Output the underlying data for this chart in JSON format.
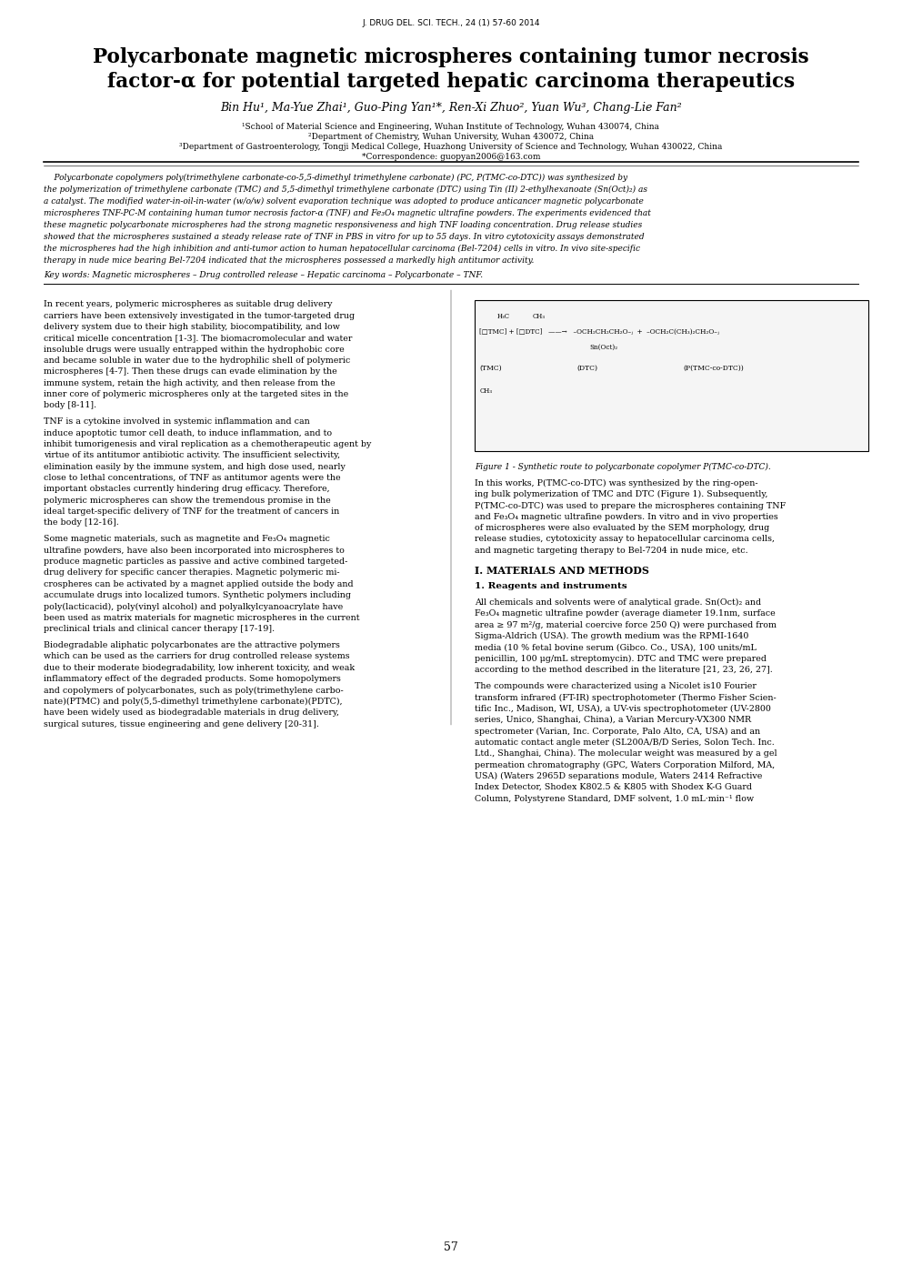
{
  "journal_header": "J. DRUG DEL. SCI. TECH., 24 (1) 57-60 2014",
  "title_line1": "Polycarbonate magnetic microspheres containing tumor necrosis",
  "title_line2": "factor-α for potential targeted hepatic carcinoma therapeutics",
  "authors": "Bin Hu¹, Ma-Yue Zhai¹, Guo-Ping Yan¹*, Ren-Xi Zhuo², Yuan Wu³, Chang-Lie Fan²",
  "affil1": "¹School of Material Science and Engineering, Wuhan Institute of Technology, Wuhan 430074, China",
  "affil2": "²Department of Chemistry, Wuhan University, Wuhan 430072, China",
  "affil3": "³Department of Gastroenterology, Tongji Medical College, Huazhong University of Science and Technology, Wuhan 430022, China",
  "correspondence": "*Correspondence: guopyan2006@163.com",
  "figure_caption": "Figure 1 - Synthetic route to polycarbonate copolymer P(TMC-co-DTC).",
  "section_header1": "I. MATERIALS AND METHODS",
  "section_header2": "1. Reagents and instruments",
  "page_number": "57",
  "bg_color": "#ffffff",
  "text_color": "#000000",
  "abstract_lines": [
    "    Polycarbonate copolymers poly(trimethylene carbonate-co-5,5-dimethyl trimethylene carbonate) (PC, P(TMC-co-DTC)) was synthesized by",
    "the polymerization of trimethylene carbonate (TMC) and 5,5-dimethyl trimethylene carbonate (DTC) using Tin (II) 2-ethylhexanoate (Sn(Oct)₂) as",
    "a catalyst. The modified water-in-oil-in-water (w/o/w) solvent evaporation technique was adopted to produce anticancer magnetic polycarbonate",
    "microspheres TNF-PC-M containing human tumor necrosis factor-α (TNF) and Fe₃O₄ magnetic ultrafine powders. The experiments evidenced that",
    "these magnetic polycarbonate microspheres had the strong magnetic responsiveness and high TNF loading concentration. Drug release studies",
    "showed that the microspheres sustained a steady release rate of TNF in PBS in vitro for up to 55 days. In vitro cytotoxicity assays demonstrated",
    "the microspheres had the high inhibition and anti-tumor action to human hepatocellular carcinoma (Bel-7204) cells in vitro. In vivo site-specific",
    "therapy in nude mice bearing Bel-7204 indicated that the microspheres possessed a markedly high antitumor activity."
  ],
  "keywords": "Key words: Magnetic microspheres – Drug controlled release – Hepatic carcinoma – Polycarbonate – TNF.",
  "left_para1": [
    "In recent years, polymeric microspheres as suitable drug delivery",
    "carriers have been extensively investigated in the tumor-targeted drug",
    "delivery system due to their high stability, biocompatibility, and low",
    "critical micelle concentration [1-3]. The biomacromolecular and water",
    "insoluble drugs were usually entrapped within the hydrophobic core",
    "and became soluble in water due to the hydrophilic shell of polymeric",
    "microspheres [4-7]. Then these drugs can evade elimination by the",
    "immune system, retain the high activity, and then release from the",
    "inner core of polymeric microspheres only at the targeted sites in the",
    "body [8-11]."
  ],
  "left_para2": [
    "TNF is a cytokine involved in systemic inflammation and can",
    "induce apoptotic tumor cell death, to induce inflammation, and to",
    "inhibit tumorigenesis and viral replication as a chemotherapeutic agent by",
    "virtue of its antitumor antibiotic activity. The insufficient selectivity,",
    "elimination easily by the immune system, and high dose used, nearly",
    "close to lethal concentrations, of TNF as antitumor agents were the",
    "important obstacles currently hindering drug efficacy. Therefore,",
    "polymeric microspheres can show the tremendous promise in the",
    "ideal target-specific delivery of TNF for the treatment of cancers in",
    "the body [12-16]."
  ],
  "left_para3": [
    "Some magnetic materials, such as magnetite and Fe₃O₄ magnetic",
    "ultrafine powders, have also been incorporated into microspheres to",
    "produce magnetic particles as passive and active combined targeted-",
    "drug delivery for specific cancer therapies. Magnetic polymeric mi-",
    "crospheres can be activated by a magnet applied outside the body and",
    "accumulate drugs into localized tumors. Synthetic polymers including",
    "poly(lacticacid), poly(vinyl alcohol) and polyalkylcyanoacrylate have",
    "been used as matrix materials for magnetic microspheres in the current",
    "preclinical trials and clinical cancer therapy [17-19]."
  ],
  "left_para4": [
    "Biodegradable aliphatic polycarbonates are the attractive polymers",
    "which can be used as the carriers for drug controlled release systems",
    "due to their moderate biodegradability, low inherent toxicity, and weak",
    "inflammatory effect of the degraded products. Some homopolymers",
    "and copolymers of polycarbonates, such as poly(trimethylene carbo-",
    "nate)(PTMC) and poly(5,5-dimethyl trimethylene carbonate)(PDTC),",
    "have been widely used as biodegradable materials in drug delivery,",
    "surgical sutures, tissue engineering and gene delivery [20-31]."
  ],
  "right_para1": [
    "In this works, P(TMC-co-DTC) was synthesized by the ring-open-",
    "ing bulk polymerization of TMC and DTC (Figure 1). Subsequently,",
    "P(TMC-co-DTC) was used to prepare the microspheres containing TNF",
    "and Fe₃O₄ magnetic ultrafine powders. In vitro and in vivo properties",
    "of microspheres were also evaluated by the SEM morphology, drug",
    "release studies, cytotoxicity assay to hepatocellular carcinoma cells,",
    "and magnetic targeting therapy to Bel-7204 in nude mice, etc."
  ],
  "mat_lines1": [
    "All chemicals and solvents were of analytical grade. Sn(Oct)₂ and",
    "Fe₃O₄ magnetic ultrafine powder (average diameter 19.1nm, surface",
    "area ≥ 97 m²/g, material coercive force 250 Q) were purchased from",
    "Sigma-Aldrich (USA). The growth medium was the RPMI-1640",
    "media (10 % fetal bovine serum (Gibco. Co., USA), 100 units/mL",
    "penicillin, 100 μg/mL streptomycin). DTC and TMC were prepared",
    "according to the method described in the literature [21, 23, 26, 27]."
  ],
  "mat_lines2": [
    "The compounds were characterized using a Nicolet is10 Fourier",
    "transform infrared (FT-IR) spectrophotometer (Thermo Fisher Scien-",
    "tific Inc., Madison, WI, USA), a UV-vis spectrophotometer (UV-2800",
    "series, Unico, Shanghai, China), a Varian Mercury-VX300 NMR",
    "spectrometer (Varian, Inc. Corporate, Palo Alto, CA, USA) and an",
    "automatic contact angle meter (SL200A/B/D Series, Solon Tech. Inc.",
    "Ltd., Shanghai, China). The molecular weight was measured by a gel",
    "permeation chromatography (GPC, Waters Corporation Milford, MA,",
    "USA) (Waters 2965D separations module, Waters 2414 Refractive",
    "Index Detector, Shodex K802.5 & K805 with Shodex K-G Guard",
    "Column, Polystyrene Standard, DMF solvent, 1.0 mL·min⁻¹ flow"
  ]
}
